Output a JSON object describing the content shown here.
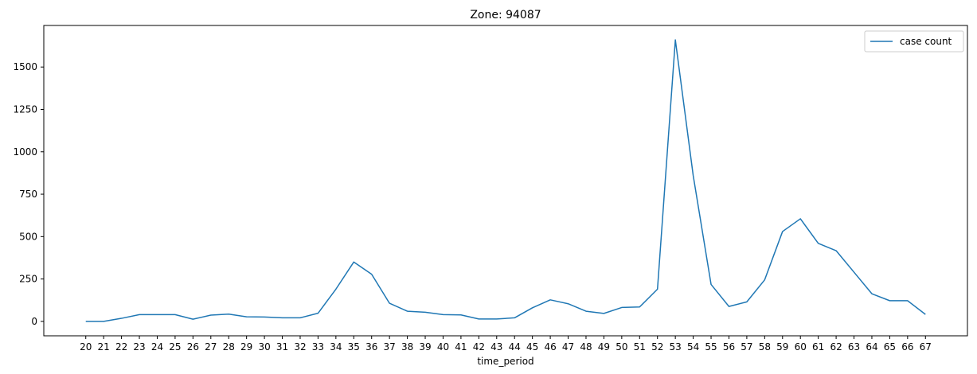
{
  "chart_data": {
    "type": "line",
    "title": "Zone: 94087",
    "xlabel": "time_period",
    "ylabel": "",
    "x": [
      20,
      21,
      22,
      23,
      24,
      25,
      26,
      27,
      28,
      29,
      30,
      31,
      32,
      33,
      34,
      35,
      36,
      37,
      38,
      39,
      40,
      41,
      42,
      43,
      44,
      45,
      46,
      47,
      48,
      49,
      50,
      51,
      52,
      53,
      54,
      55,
      56,
      57,
      58,
      59,
      60,
      61,
      62,
      63,
      64,
      65,
      66,
      67
    ],
    "series": [
      {
        "name": "case count",
        "color": "#1f77b4",
        "values": [
          0,
          0,
          18,
          40,
          40,
          40,
          13,
          37,
          43,
          27,
          26,
          21,
          21,
          48,
          190,
          350,
          278,
          107,
          60,
          54,
          40,
          38,
          14,
          14,
          21,
          80,
          127,
          104,
          60,
          47,
          82,
          85,
          190,
          1660,
          860,
          218,
          88,
          115,
          245,
          530,
          605,
          460,
          417,
          290,
          163,
          122,
          122,
          41
        ]
      }
    ],
    "yticks": [
      0,
      250,
      500,
      750,
      1000,
      1250,
      1500
    ],
    "ylim": [
      -85,
      1745
    ],
    "grid": false,
    "legend": "top-right"
  }
}
